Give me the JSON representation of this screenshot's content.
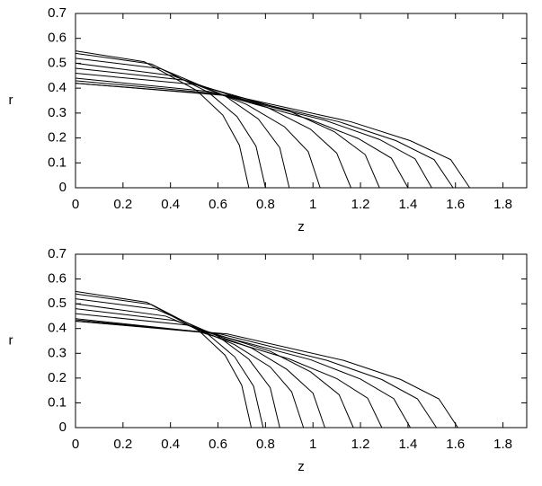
{
  "chart_data": [
    {
      "type": "line",
      "xlabel": "z",
      "ylabel": "r",
      "xlim": [
        0,
        1.9
      ],
      "ylim": [
        0,
        0.7
      ],
      "xticks": [
        0,
        0.2,
        0.4,
        0.6,
        0.8,
        1,
        1.2,
        1.4,
        1.6,
        1.8
      ],
      "yticks": [
        0,
        0.1,
        0.2,
        0.3,
        0.4,
        0.5,
        0.6,
        0.7
      ],
      "series": [
        {
          "color": "#000000",
          "x": [
            0,
            0.29,
            0.51,
            0.62,
            0.69,
            0.73
          ],
          "values": [
            0.55,
            0.506,
            0.391,
            0.292,
            0.171,
            0
          ]
        },
        {
          "color": "#000000",
          "x": [
            0,
            0.32,
            0.56,
            0.68,
            0.76,
            0.8
          ],
          "values": [
            0.54,
            0.497,
            0.383,
            0.286,
            0.167,
            0
          ]
        },
        {
          "color": "#000000",
          "x": [
            0,
            0.36,
            0.63,
            0.77,
            0.86,
            0.9
          ],
          "values": [
            0.52,
            0.478,
            0.369,
            0.276,
            0.161,
            0
          ]
        },
        {
          "color": "#000000",
          "x": [
            0,
            0.41,
            0.72,
            0.88,
            0.98,
            1.03
          ],
          "values": [
            0.5,
            0.45,
            0.335,
            0.245,
            0.145,
            0
          ]
        },
        {
          "color": "#000000",
          "x": [
            0,
            0.46,
            0.81,
            0.99,
            1.1,
            1.16
          ],
          "values": [
            0.48,
            0.432,
            0.322,
            0.235,
            0.139,
            0
          ]
        },
        {
          "color": "#000000",
          "x": [
            0,
            0.51,
            0.9,
            1.09,
            1.22,
            1.28
          ],
          "values": [
            0.46,
            0.414,
            0.308,
            0.225,
            0.133,
            0
          ]
        },
        {
          "color": "#000000",
          "x": [
            0,
            0.56,
            0.98,
            1.19,
            1.33,
            1.4
          ],
          "values": [
            0.44,
            0.387,
            0.277,
            0.198,
            0.119,
            0
          ]
        },
        {
          "color": "#000000",
          "x": [
            0,
            0.6,
            1.05,
            1.28,
            1.43,
            1.5
          ],
          "values": [
            0.43,
            0.378,
            0.271,
            0.194,
            0.116,
            0
          ]
        },
        {
          "color": "#000000",
          "x": [
            0,
            0.64,
            1.11,
            1.35,
            1.51,
            1.59
          ],
          "values": [
            0.42,
            0.37,
            0.265,
            0.189,
            0.113,
            0
          ]
        },
        {
          "color": "#000000",
          "x": [
            0,
            0.66,
            1.16,
            1.41,
            1.58,
            1.66
          ],
          "values": [
            0.42,
            0.37,
            0.265,
            0.189,
            0.113,
            0
          ]
        }
      ]
    },
    {
      "type": "line",
      "xlabel": "z",
      "ylabel": "r",
      "xlim": [
        0,
        1.9
      ],
      "ylim": [
        0,
        0.7
      ],
      "xticks": [
        0,
        0.2,
        0.4,
        0.6,
        0.8,
        1,
        1.2,
        1.4,
        1.6,
        1.8
      ],
      "yticks": [
        0,
        0.1,
        0.2,
        0.3,
        0.4,
        0.5,
        0.6,
        0.7
      ],
      "series": [
        {
          "color": "#000000",
          "x": [
            0,
            0.3,
            0.52,
            0.63,
            0.7,
            0.74
          ],
          "values": [
            0.55,
            0.506,
            0.391,
            0.292,
            0.171,
            0
          ]
        },
        {
          "color": "#000000",
          "x": [
            0,
            0.32,
            0.55,
            0.67,
            0.75,
            0.79
          ],
          "values": [
            0.54,
            0.497,
            0.383,
            0.286,
            0.167,
            0
          ]
        },
        {
          "color": "#000000",
          "x": [
            0,
            0.34,
            0.6,
            0.73,
            0.82,
            0.86
          ],
          "values": [
            0.52,
            0.478,
            0.369,
            0.276,
            0.161,
            0
          ]
        },
        {
          "color": "#000000",
          "x": [
            0,
            0.38,
            0.67,
            0.82,
            0.91,
            0.96
          ],
          "values": [
            0.5,
            0.45,
            0.335,
            0.245,
            0.145,
            0
          ]
        },
        {
          "color": "#000000",
          "x": [
            0,
            0.42,
            0.74,
            0.89,
            1.0,
            1.05
          ],
          "values": [
            0.48,
            0.432,
            0.322,
            0.235,
            0.139,
            0
          ]
        },
        {
          "color": "#000000",
          "x": [
            0,
            0.47,
            0.82,
            0.99,
            1.11,
            1.17
          ],
          "values": [
            0.46,
            0.414,
            0.308,
            0.225,
            0.133,
            0
          ]
        },
        {
          "color": "#000000",
          "x": [
            0,
            0.52,
            0.9,
            1.1,
            1.23,
            1.29
          ],
          "values": [
            0.44,
            0.387,
            0.277,
            0.198,
            0.119,
            0
          ]
        },
        {
          "color": "#000000",
          "x": [
            0,
            0.56,
            0.99,
            1.2,
            1.34,
            1.41
          ],
          "values": [
            0.435,
            0.383,
            0.274,
            0.196,
            0.117,
            0
          ]
        },
        {
          "color": "#000000",
          "x": [
            0,
            0.61,
            1.06,
            1.29,
            1.44,
            1.52
          ],
          "values": [
            0.43,
            0.378,
            0.271,
            0.194,
            0.116,
            0
          ]
        },
        {
          "color": "#000000",
          "x": [
            0,
            0.64,
            1.13,
            1.37,
            1.53,
            1.61
          ],
          "values": [
            0.43,
            0.378,
            0.271,
            0.194,
            0.116,
            0
          ]
        }
      ]
    }
  ]
}
